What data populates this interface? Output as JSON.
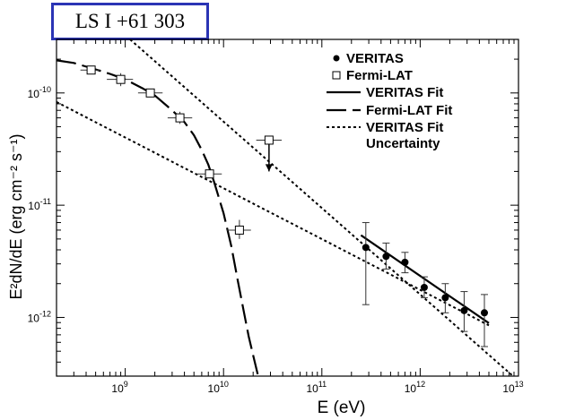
{
  "chart_data": {
    "type": "scatter",
    "title": "LS I +61 303",
    "xlabel": "E (eV)",
    "ylabel": "E²dN/dE (erg cm⁻² s⁻¹)",
    "x_scale": "log",
    "y_scale": "log",
    "xlim": [
      200000000.0,
      10000000000000.0
    ],
    "ylim": [
      3e-13,
      3e-10
    ],
    "x_ticks": [
      {
        "value": 1000000000.0,
        "mantissa": "10",
        "exp": "9"
      },
      {
        "value": 10000000000.0,
        "mantissa": "10",
        "exp": "10"
      },
      {
        "value": 100000000000.0,
        "mantissa": "10",
        "exp": "11"
      },
      {
        "value": 1000000000000.0,
        "mantissa": "10",
        "exp": "12"
      },
      {
        "value": 10000000000000.0,
        "mantissa": "10",
        "exp": "13"
      }
    ],
    "y_ticks": [
      {
        "value": 1e-10,
        "mantissa": "10",
        "exp": "-10"
      },
      {
        "value": 1e-11,
        "mantissa": "10",
        "exp": "-11"
      },
      {
        "value": 1e-12,
        "mantissa": "10",
        "exp": "-12"
      }
    ],
    "legend_position": "top-right",
    "legend": [
      {
        "label": "VERITAS",
        "symbol": "filled-circle"
      },
      {
        "label": "Fermi-LAT",
        "symbol": "open-square"
      },
      {
        "label": "VERITAS Fit",
        "symbol": "solid-line"
      },
      {
        "label": "Fermi-LAT Fit",
        "symbol": "long-dash-line"
      },
      {
        "label": "VERITAS Fit",
        "label2": "Uncertainty",
        "symbol": "dotted-line"
      }
    ],
    "series": [
      {
        "name": "VERITAS",
        "marker": "filled-circle",
        "points": [
          {
            "x": 280000000000.0,
            "y": 4.2e-12,
            "y_lo": 1.3e-12,
            "y_hi": 7e-12
          },
          {
            "x": 450000000000.0,
            "y": 3.5e-12,
            "y_lo": 2.7e-12,
            "y_hi": 4.6e-12
          },
          {
            "x": 700000000000.0,
            "y": 3.1e-12,
            "y_lo": 2.5e-12,
            "y_hi": 3.8e-12
          },
          {
            "x": 1100000000000.0,
            "y": 1.85e-12,
            "y_lo": 1.5e-12,
            "y_hi": 2.3e-12
          },
          {
            "x": 1800000000000.0,
            "y": 1.5e-12,
            "y_lo": 1.1e-12,
            "y_hi": 2e-12
          },
          {
            "x": 2800000000000.0,
            "y": 1.15e-12,
            "y_lo": 7.5e-13,
            "y_hi": 1.7e-12
          },
          {
            "x": 4500000000000.0,
            "y": 1.1e-12,
            "y_lo": 5.5e-13,
            "y_hi": 1.6e-12
          }
        ]
      },
      {
        "name": "Fermi-LAT",
        "marker": "open-square",
        "points": [
          {
            "x": 450000000.0,
            "y": 1.6e-10,
            "x_lo": 350000000.0,
            "x_hi": 560000000.0,
            "y_lo": 1.5e-10,
            "y_hi": 1.7e-10
          },
          {
            "x": 900000000.0,
            "y": 1.32e-10,
            "x_lo": 650000000.0,
            "x_hi": 1200000000.0,
            "y_lo": 1.15e-10,
            "y_hi": 1.5e-10
          },
          {
            "x": 1800000000.0,
            "y": 1e-10,
            "x_lo": 1350000000.0,
            "x_hi": 2400000000.0,
            "y_lo": 9.3e-11,
            "y_hi": 1.07e-10
          },
          {
            "x": 3600000000.0,
            "y": 6e-11,
            "x_lo": 2700000000.0,
            "x_hi": 4800000000.0,
            "y_lo": 5.3e-11,
            "y_hi": 6.8e-11
          },
          {
            "x": 7200000000.0,
            "y": 1.9e-11,
            "x_lo": 5400000000.0,
            "x_hi": 9600000000.0,
            "y_lo": 1.75e-11,
            "y_hi": 2.1e-11
          },
          {
            "x": 14500000000.0,
            "y": 6e-12,
            "x_lo": 10800000000.0,
            "x_hi": 19000000000.0,
            "y_lo": 5e-12,
            "y_hi": 7.4e-12
          },
          {
            "x": 29000000000.0,
            "y": 3.8e-11,
            "x_lo": 21500000000.0,
            "x_hi": 39000000000.0,
            "upper_limit": true,
            "arrow_to": 2e-11
          }
        ]
      }
    ],
    "fits": [
      {
        "name": "VERITAS Fit",
        "style": "solid",
        "points": [
          [
            250000000000.0,
            5.4e-12
          ],
          [
            5000000000000.0,
            8.9e-13
          ]
        ]
      },
      {
        "name": "Fermi-LAT Fit",
        "style": "long-dash",
        "points": [
          [
            200000000.0,
            1.95e-10
          ],
          [
            300000000.0,
            1.85e-10
          ],
          [
            500000000.0,
            1.62e-10
          ],
          [
            700000000.0,
            1.48e-10
          ],
          [
            1000000000.0,
            1.32e-10
          ],
          [
            1500000000.0,
            1.1e-10
          ],
          [
            2000000000.0,
            9.5e-11
          ],
          [
            3000000000.0,
            7e-11
          ],
          [
            4000000000.0,
            5.5e-11
          ],
          [
            5000000000.0,
            4.2e-11
          ],
          [
            6000000000.0,
            3.1e-11
          ],
          [
            7000000000.0,
            2.3e-11
          ],
          [
            8000000000.0,
            1.62e-11
          ],
          [
            10000000000.0,
            8.5e-12
          ],
          [
            12000000000.0,
            4.3e-12
          ],
          [
            14000000000.0,
            2.1e-12
          ],
          [
            16000000000.0,
            1.15e-12
          ],
          [
            18000000000.0,
            6.8e-13
          ],
          [
            20000000000.0,
            4.6e-13
          ],
          [
            22500000000.0,
            3e-13
          ]
        ]
      },
      {
        "name": "VERITAS Fit Uncertainty",
        "style": "dotted",
        "points": [
          [
            200000000.0,
            8.3e-11
          ],
          [
            5000000000000.0,
            8.5e-13
          ]
        ]
      },
      {
        "name": "VERITAS Fit Uncertainty",
        "style": "dotted",
        "points": [
          [
            1120000000.0,
            3e-10
          ],
          [
            8800000000000.0,
            3e-13
          ]
        ]
      }
    ]
  }
}
